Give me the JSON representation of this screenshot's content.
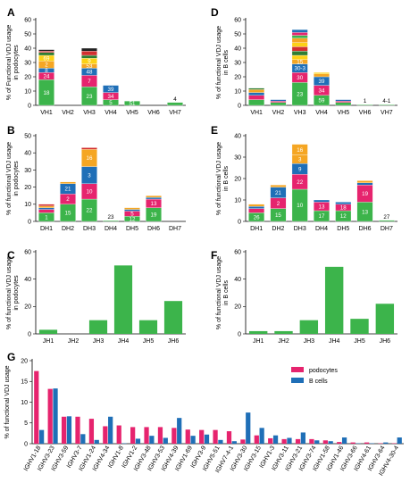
{
  "colors": {
    "green": "#3cb44b",
    "pink": "#e6246e",
    "blue": "#1f6fb7",
    "orange": "#f5a623",
    "yellow": "#fcd116",
    "dark_green": "#2e7d32",
    "red": "#d32f2f",
    "black": "#222222",
    "podocytes": "#e6246e",
    "bcells": "#1f6fb7"
  },
  "chart_data": [
    {
      "id": "A",
      "letter": "A",
      "type": "bar",
      "stacked": true,
      "ylabel": [
        "% of Functional VDJ usage",
        "in podocytes"
      ],
      "categories": [
        "VH1",
        "VH2",
        "VH3",
        "VH4",
        "VH5",
        "VH6",
        "VH7"
      ],
      "ylim": [
        0,
        60
      ],
      "yticks": [
        0,
        10,
        20,
        30,
        40,
        50,
        60
      ],
      "bars": [
        {
          "segments": [
            {
              "v": 18,
              "c": "green",
              "label": "18"
            },
            {
              "v": 5,
              "c": "pink",
              "label": "24"
            },
            {
              "v": 3,
              "c": "blue",
              "label": "8"
            },
            {
              "v": 5,
              "c": "orange",
              "label": "2"
            },
            {
              "v": 4,
              "c": "yellow",
              "label": "69"
            },
            {
              "v": 2,
              "c": "dark_green",
              "label": ""
            },
            {
              "v": 1,
              "c": "red",
              "label": ""
            },
            {
              "v": 1,
              "c": "black",
              "label": ""
            }
          ]
        },
        {
          "segments": []
        },
        {
          "segments": [
            {
              "v": 13,
              "c": "green",
              "label": "23"
            },
            {
              "v": 8,
              "c": "pink",
              "label": "7"
            },
            {
              "v": 5,
              "c": "blue",
              "label": "48"
            },
            {
              "v": 3,
              "c": "orange",
              "label": "53"
            },
            {
              "v": 4,
              "c": "yellow",
              "label": "9"
            },
            {
              "v": 2,
              "c": "dark_green",
              "label": ""
            },
            {
              "v": 3,
              "c": "red",
              "label": ""
            },
            {
              "v": 2,
              "c": "black",
              "label": ""
            }
          ]
        },
        {
          "segments": [
            {
              "v": 4,
              "c": "green",
              "label": "5"
            },
            {
              "v": 5,
              "c": "pink",
              "label": "34"
            },
            {
              "v": 5,
              "c": "blue",
              "label": "39"
            }
          ]
        },
        {
          "segments": [
            {
              "v": 3,
              "c": "green",
              "label": "51"
            }
          ]
        },
        {
          "segments": []
        },
        {
          "segments": [
            {
              "v": 2,
              "c": "green",
              "label": ""
            }
          ],
          "top_label": "4"
        }
      ]
    },
    {
      "id": "D",
      "letter": "D",
      "type": "bar",
      "stacked": true,
      "ylabel": [
        "% of functional VDJ usage",
        "in B cells"
      ],
      "categories": [
        "VH1",
        "VH2",
        "VH3",
        "VH4",
        "VH5",
        "VH6",
        "VH7"
      ],
      "ylim": [
        0,
        60
      ],
      "yticks": [
        0,
        10,
        20,
        30,
        40,
        50,
        60
      ],
      "bars": [
        {
          "segments": [
            {
              "v": 4,
              "c": "green",
              "label": ""
            },
            {
              "v": 3,
              "c": "pink",
              "label": ""
            },
            {
              "v": 2,
              "c": "blue",
              "label": ""
            },
            {
              "v": 2,
              "c": "orange",
              "label": ""
            },
            {
              "v": 1,
              "c": "dark_green",
              "label": ""
            }
          ]
        },
        {
          "segments": [
            {
              "v": 2,
              "c": "green",
              "label": ""
            },
            {
              "v": 1,
              "c": "pink",
              "label": ""
            },
            {
              "v": 1,
              "c": "blue",
              "label": ""
            }
          ]
        },
        {
          "segments": [
            {
              "v": 16,
              "c": "green",
              "label": "23"
            },
            {
              "v": 7,
              "c": "pink",
              "label": "30"
            },
            {
              "v": 6,
              "c": "blue",
              "label": "30-3"
            },
            {
              "v": 3,
              "c": "orange",
              "label": "15"
            },
            {
              "v": 3,
              "c": "yellow",
              "label": ""
            },
            {
              "v": 3,
              "c": "dark_green",
              "label": ""
            },
            {
              "v": 3,
              "c": "red",
              "label": ""
            },
            {
              "v": 3,
              "c": "yellow",
              "label": ""
            },
            {
              "v": 3,
              "c": "orange",
              "label": ""
            },
            {
              "v": 2,
              "c": "green",
              "label": ""
            },
            {
              "v": 2,
              "c": "pink",
              "label": ""
            },
            {
              "v": 2,
              "c": "blue",
              "label": ""
            }
          ]
        },
        {
          "segments": [
            {
              "v": 7,
              "c": "green",
              "label": "59"
            },
            {
              "v": 7,
              "c": "pink",
              "label": "34"
            },
            {
              "v": 6,
              "c": "blue",
              "label": "39"
            },
            {
              "v": 2,
              "c": "orange",
              "label": ""
            },
            {
              "v": 1,
              "c": "yellow",
              "label": ""
            }
          ]
        },
        {
          "segments": [
            {
              "v": 2,
              "c": "green",
              "label": ""
            },
            {
              "v": 1,
              "c": "pink",
              "label": ""
            },
            {
              "v": 1,
              "c": "blue",
              "label": ""
            }
          ]
        },
        {
          "segments": [
            {
              "v": 0.5,
              "c": "green",
              "label": ""
            }
          ],
          "top_label": "1"
        },
        {
          "segments": [
            {
              "v": 0.5,
              "c": "green",
              "label": ""
            }
          ],
          "top_label": "4-1"
        }
      ]
    },
    {
      "id": "B",
      "letter": "B",
      "type": "bar",
      "stacked": true,
      "ylabel": [
        "% of functional VDJ usage",
        "in podocytes"
      ],
      "categories": [
        "DH1",
        "DH2",
        "DH3",
        "DH4",
        "DH5",
        "DH6",
        "DH7"
      ],
      "ylim": [
        0,
        50
      ],
      "yticks": [
        0,
        10,
        20,
        30,
        40,
        50
      ],
      "bars": [
        {
          "segments": [
            {
              "v": 5,
              "c": "green",
              "label": "1"
            },
            {
              "v": 2,
              "c": "pink",
              "label": ""
            },
            {
              "v": 1,
              "c": "blue",
              "label": ""
            },
            {
              "v": 1,
              "c": "orange",
              "label": ""
            },
            {
              "v": 1,
              "c": "red",
              "label": ""
            }
          ]
        },
        {
          "segments": [
            {
              "v": 10,
              "c": "green",
              "label": "15"
            },
            {
              "v": 6,
              "c": "pink",
              "label": "2"
            },
            {
              "v": 6,
              "c": "blue",
              "label": "21"
            },
            {
              "v": 1,
              "c": "orange",
              "label": ""
            }
          ]
        },
        {
          "segments": [
            {
              "v": 13,
              "c": "green",
              "label": "22"
            },
            {
              "v": 9,
              "c": "pink",
              "label": "10"
            },
            {
              "v": 10,
              "c": "blue",
              "label": "3"
            },
            {
              "v": 10,
              "c": "orange",
              "label": "16"
            },
            {
              "v": 1,
              "c": "red",
              "label": ""
            }
          ]
        },
        {
          "segments": [
            {
              "v": 0.5,
              "c": "green",
              "label": ""
            }
          ],
          "top_label": "23"
        },
        {
          "segments": [
            {
              "v": 3,
              "c": "green",
              "label": "12"
            },
            {
              "v": 3,
              "c": "pink",
              "label": "5"
            },
            {
              "v": 1,
              "c": "blue",
              "label": ""
            },
            {
              "v": 1,
              "c": "orange",
              "label": ""
            }
          ]
        },
        {
          "segments": [
            {
              "v": 8,
              "c": "green",
              "label": "19"
            },
            {
              "v": 5,
              "c": "pink",
              "label": "13"
            },
            {
              "v": 1,
              "c": "blue",
              "label": ""
            },
            {
              "v": 1,
              "c": "orange",
              "label": ""
            }
          ]
        },
        {
          "segments": []
        }
      ]
    },
    {
      "id": "E",
      "letter": "E",
      "type": "bar",
      "stacked": true,
      "ylabel": [
        "% of functional VDJ usage",
        "in B cells"
      ],
      "categories": [
        "DH1",
        "DH2",
        "DH3",
        "DH4",
        "DH5",
        "DH6",
        "DH7"
      ],
      "ylim": [
        0,
        40
      ],
      "yticks": [
        0,
        10,
        20,
        30,
        40
      ],
      "bars": [
        {
          "segments": [
            {
              "v": 4,
              "c": "green",
              "label": "26"
            },
            {
              "v": 2,
              "c": "pink",
              "label": ""
            },
            {
              "v": 1,
              "c": "blue",
              "label": ""
            },
            {
              "v": 1,
              "c": "orange",
              "label": ""
            }
          ]
        },
        {
          "segments": [
            {
              "v": 6,
              "c": "green",
              "label": "15"
            },
            {
              "v": 5,
              "c": "pink",
              "label": "2"
            },
            {
              "v": 5,
              "c": "blue",
              "label": "21"
            },
            {
              "v": 1,
              "c": "orange",
              "label": ""
            }
          ]
        },
        {
          "segments": [
            {
              "v": 15,
              "c": "green",
              "label": "10"
            },
            {
              "v": 7,
              "c": "pink",
              "label": "22"
            },
            {
              "v": 5,
              "c": "blue",
              "label": "9"
            },
            {
              "v": 4,
              "c": "orange",
              "label": "3"
            },
            {
              "v": 5,
              "c": "orange",
              "label": "16"
            }
          ]
        },
        {
          "segments": [
            {
              "v": 5,
              "c": "green",
              "label": "17"
            },
            {
              "v": 4,
              "c": "pink",
              "label": "13"
            },
            {
              "v": 1,
              "c": "blue",
              "label": ""
            }
          ]
        },
        {
          "segments": [
            {
              "v": 5,
              "c": "green",
              "label": "12"
            },
            {
              "v": 3,
              "c": "pink",
              "label": "18"
            },
            {
              "v": 1,
              "c": "blue",
              "label": ""
            }
          ]
        },
        {
          "segments": [
            {
              "v": 9,
              "c": "green",
              "label": "13"
            },
            {
              "v": 8,
              "c": "pink",
              "label": "19"
            },
            {
              "v": 1,
              "c": "blue",
              "label": ""
            },
            {
              "v": 1,
              "c": "orange",
              "label": ""
            }
          ]
        },
        {
          "segments": [
            {
              "v": 0.5,
              "c": "green",
              "label": ""
            }
          ],
          "top_label": "27"
        }
      ]
    },
    {
      "id": "C",
      "letter": "C",
      "type": "bar",
      "stacked": false,
      "ylabel": [
        "% of functional VDJ usage",
        "in podocytes"
      ],
      "categories": [
        "JH1",
        "JH2",
        "JH3",
        "JH4",
        "JH5",
        "JH6"
      ],
      "ylim": [
        0,
        60
      ],
      "yticks": [
        0,
        20,
        40,
        60
      ],
      "values": [
        3,
        0,
        10,
        50,
        10,
        24
      ]
    },
    {
      "id": "F",
      "letter": "F",
      "type": "bar",
      "stacked": false,
      "ylabel": [
        "% of functional VDJ usage",
        "in B cells"
      ],
      "categories": [
        "JH1",
        "JH2",
        "JH3",
        "JH4",
        "JH5",
        "JH6"
      ],
      "ylim": [
        0,
        60
      ],
      "yticks": [
        0,
        20,
        40,
        60
      ],
      "values": [
        2,
        2,
        10,
        49,
        11,
        22
      ]
    },
    {
      "id": "G",
      "letter": "G",
      "type": "bar",
      "stacked": false,
      "grouped": true,
      "ylabel": [
        "% of functional VDJ usage"
      ],
      "ylim": [
        0,
        20
      ],
      "yticks": [
        0,
        5,
        10,
        15,
        20
      ],
      "legend": [
        "podocytes",
        "B cells"
      ],
      "categories": [
        "IGHV1-18",
        "IGHV3-23",
        "IGHV3-59",
        "IGHV3-7",
        "IGHV1-24",
        "IGHV4-34",
        "IGHV1-8",
        "IGHV1-2",
        "IGHV3-48",
        "IGHV3-53",
        "IGHV4-39",
        "IGHV1-69",
        "IGHV3-9",
        "IGHV5-51",
        "IGHV7-4-1",
        "IGHV3-30",
        "IGHV3-15",
        "IGHV1-3",
        "IGHV3-11",
        "IGHV3-21",
        "IGHV3-74",
        "IGHV1-58",
        "IGHV1-46",
        "IGHV3-66",
        "IGHV4-61",
        "IGHV3-64",
        "IGHV4-30-4"
      ],
      "series": [
        {
          "name": "podocytes",
          "color": "pink",
          "values": [
            17.5,
            13.2,
            6.5,
            6.5,
            6.0,
            4.2,
            4.4,
            4.0,
            4.0,
            4.0,
            3.8,
            3.4,
            3.3,
            3.3,
            3.0,
            1.0,
            2.0,
            1.3,
            1.1,
            1.1,
            1.1,
            0.8,
            0.4,
            0.3,
            0.3,
            0.1,
            0.1
          ]
        },
        {
          "name": "B cells",
          "color": "blue",
          "values": [
            3.3,
            13.3,
            6.6,
            2.3,
            0.9,
            6.5,
            0.1,
            1.2,
            1.9,
            1.4,
            6.2,
            1.9,
            2.2,
            0.9,
            0.6,
            7.5,
            3.8,
            2.0,
            1.4,
            2.7,
            0.8,
            0.6,
            1.5,
            0.1,
            0.1,
            0.3,
            1.5
          ]
        }
      ]
    }
  ]
}
